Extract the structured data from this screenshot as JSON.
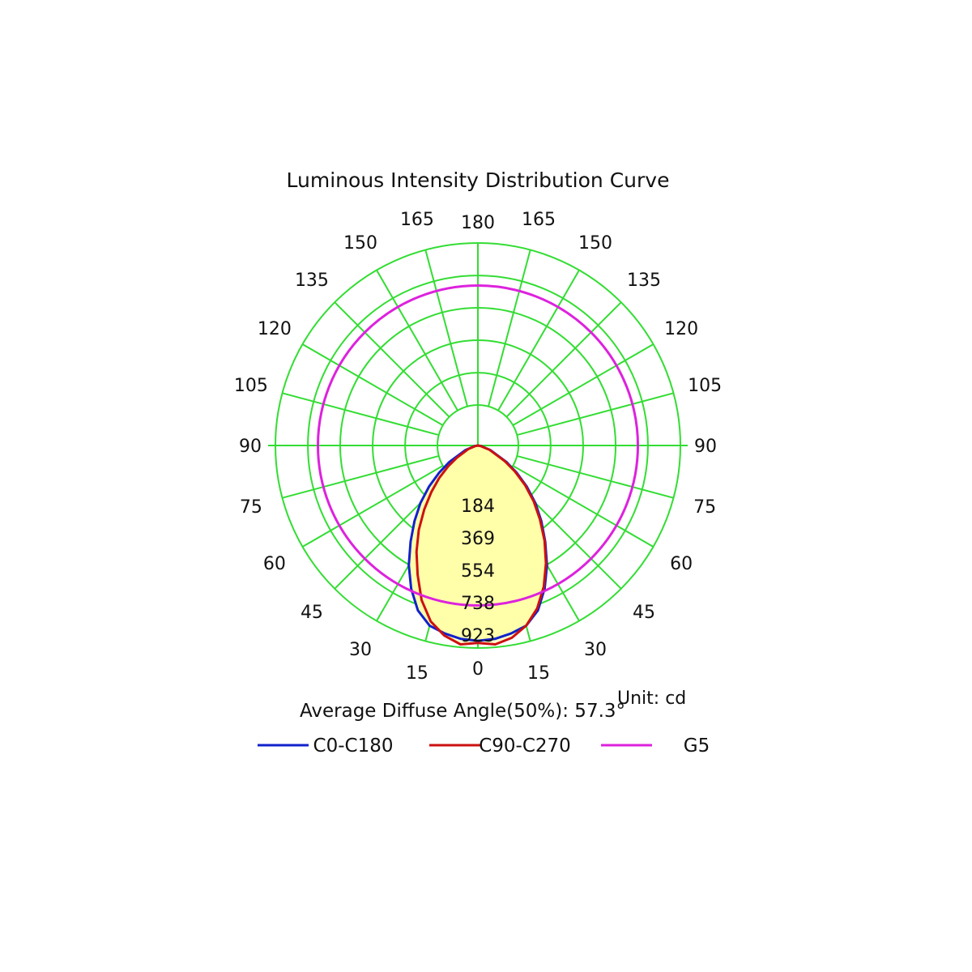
{
  "chart_data": {
    "type": "polar",
    "title": "Luminous Intensity Distribution Curve",
    "unit_label": "Unit: cd",
    "average_angle_label": "Average Diffuse Angle(50%): 57.3°",
    "radial_max": 923,
    "radial_ticks": [
      184,
      369,
      554,
      738,
      923
    ],
    "angle_step": 15,
    "left_angle_labels": [
      "0",
      "15",
      "30",
      "45",
      "60",
      "75",
      "90",
      "105",
      "120",
      "135",
      "150",
      "165",
      "180"
    ],
    "right_angle_labels": [
      "0",
      "15",
      "30",
      "45",
      "60",
      "75",
      "90",
      "105",
      "120",
      "135",
      "150",
      "165",
      "180"
    ],
    "grid": true,
    "grid_color": "#33dd33",
    "legend_position": "bottom",
    "series": [
      {
        "name": "C0-C180",
        "color": "#1122cc",
        "fill": "#ffffaa",
        "angles": [
          0,
          5,
          10,
          15,
          20,
          25,
          30,
          35,
          40,
          45,
          50,
          55,
          60,
          70,
          80,
          90
        ],
        "left": [
          890,
          885,
          870,
          850,
          800,
          720,
          630,
          535,
          450,
          370,
          290,
          215,
          150,
          60,
          15,
          0
        ],
        "right": [
          890,
          885,
          870,
          850,
          800,
          720,
          630,
          535,
          450,
          370,
          290,
          215,
          150,
          60,
          15,
          0
        ]
      },
      {
        "name": "C90-C270",
        "color": "#cc1111",
        "fill": "#ffffaa",
        "angles": [
          0,
          5,
          10,
          15,
          20,
          25,
          30,
          35,
          40,
          45,
          50,
          55,
          60,
          70,
          80,
          90
        ],
        "left": [
          900,
          910,
          880,
          830,
          750,
          650,
          560,
          470,
          380,
          300,
          230,
          165,
          110,
          45,
          10,
          0
        ],
        "right": [
          900,
          910,
          890,
          850,
          790,
          710,
          620,
          530,
          440,
          360,
          280,
          205,
          140,
          55,
          12,
          0
        ]
      },
      {
        "name": "G5",
        "color": "#dd22dd",
        "constant": 923
      }
    ]
  }
}
